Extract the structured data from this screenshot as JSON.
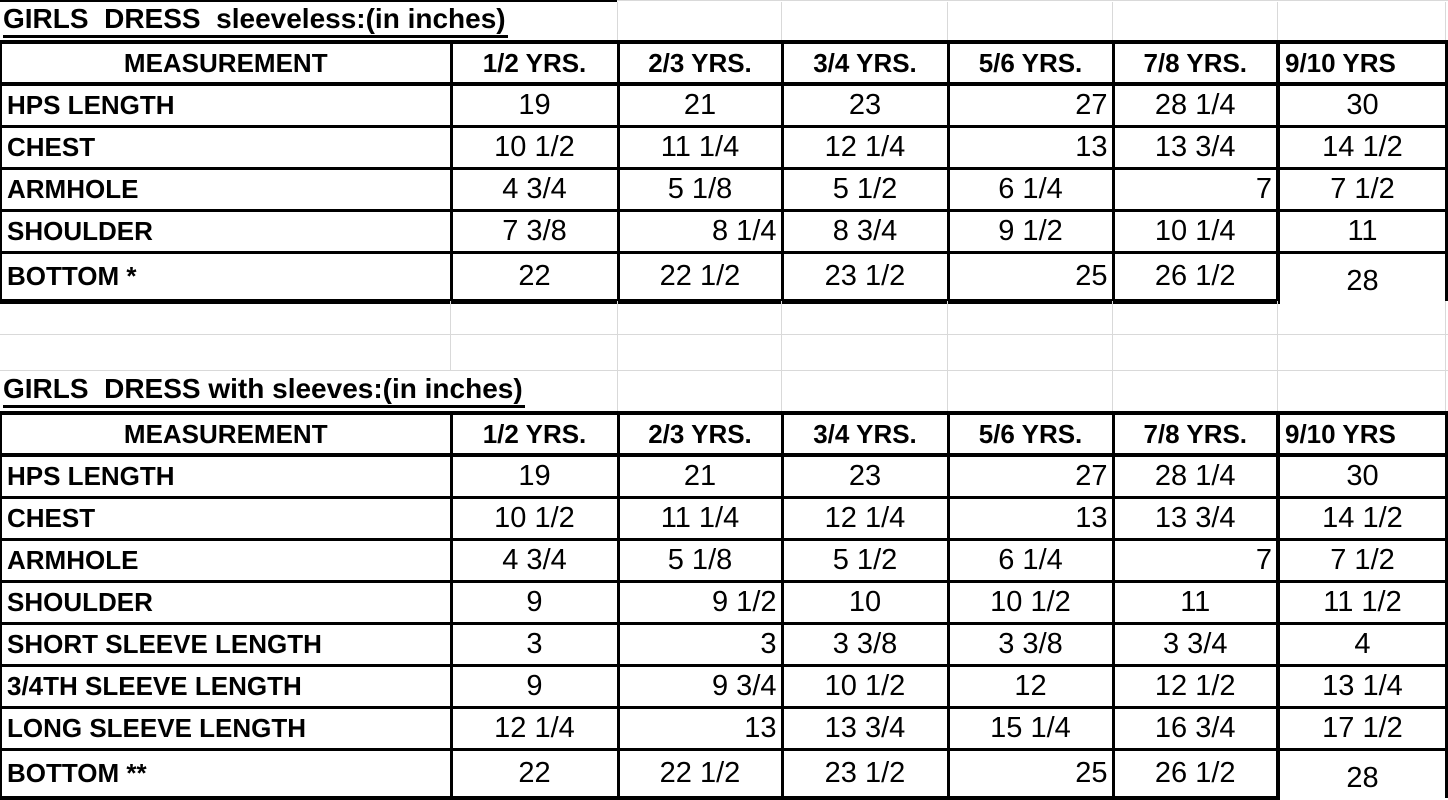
{
  "page": {
    "background_color": "#ffffff",
    "gridline_color": "#d9d9d9",
    "table_border_color": "#000000",
    "text_color": "#000000"
  },
  "column_headers": [
    "MEASUREMENT",
    "1/2 YRS.",
    "2/3 YRS.",
    "3/4 YRS.",
    "5/6 YRS.",
    "7/8 YRS.",
    "9/10 YRS"
  ],
  "tables": [
    {
      "title": "GIRLS  DRESS  sleeveless:(in inches)",
      "rows": [
        {
          "label": "HPS LENGTH",
          "values": [
            "19",
            "21",
            "23",
            "27",
            "28 1/4",
            "30"
          ],
          "align": [
            "c",
            "c",
            "c",
            "r",
            "c",
            "c"
          ]
        },
        {
          "label": "CHEST",
          "values": [
            "10 1/2",
            "11 1/4",
            "12 1/4",
            "13",
            "13 3/4",
            "14 1/2"
          ],
          "align": [
            "c",
            "c",
            "c",
            "r",
            "c",
            "c"
          ]
        },
        {
          "label": "ARMHOLE",
          "values": [
            "4 3/4",
            "5 1/8",
            "5 1/2",
            "6 1/4",
            "7",
            "7 1/2"
          ],
          "align": [
            "c",
            "c",
            "c",
            "c",
            "r",
            "c"
          ]
        },
        {
          "label": "SHOULDER",
          "values": [
            "7 3/8",
            "8 1/4",
            "8 3/4",
            "9 1/2",
            "10 1/4",
            "11"
          ],
          "align": [
            "c",
            "r",
            "c",
            "c",
            "c",
            "c"
          ]
        },
        {
          "label": "BOTTOM *",
          "values": [
            "22",
            "22 1/2",
            "23 1/2",
            "25",
            "26 1/2",
            "28"
          ],
          "align": [
            "c",
            "c",
            "c",
            "r",
            "c",
            "c"
          ]
        }
      ]
    },
    {
      "title": "GIRLS  DRESS with sleeves:(in inches)",
      "rows": [
        {
          "label": "HPS LENGTH",
          "values": [
            "19",
            "21",
            "23",
            "27",
            "28 1/4",
            "30"
          ],
          "align": [
            "c",
            "c",
            "c",
            "r",
            "c",
            "c"
          ]
        },
        {
          "label": "CHEST",
          "values": [
            "10 1/2",
            "11 1/4",
            "12 1/4",
            "13",
            "13 3/4",
            "14 1/2"
          ],
          "align": [
            "c",
            "c",
            "c",
            "r",
            "c",
            "c"
          ]
        },
        {
          "label": "ARMHOLE",
          "values": [
            "4 3/4",
            "5 1/8",
            "5 1/2",
            "6 1/4",
            "7",
            "7 1/2"
          ],
          "align": [
            "c",
            "c",
            "c",
            "c",
            "r",
            "c"
          ]
        },
        {
          "label": "SHOULDER",
          "values": [
            "9",
            "9 1/2",
            "10",
            "10 1/2",
            "11",
            "11 1/2"
          ],
          "align": [
            "c",
            "r",
            "c",
            "c",
            "c",
            "c"
          ]
        },
        {
          "label": "SHORT SLEEVE LENGTH",
          "values": [
            "3",
            "3",
            "3 3/8",
            "3 3/8",
            "3 3/4",
            "4"
          ],
          "align": [
            "c",
            "r",
            "c",
            "c",
            "c",
            "c"
          ]
        },
        {
          "label": "3/4TH SLEEVE LENGTH",
          "values": [
            "9",
            "9 3/4",
            "10 1/2",
            "12",
            "12 1/2",
            "13 1/4"
          ],
          "align": [
            "c",
            "r",
            "c",
            "c",
            "c",
            "c"
          ]
        },
        {
          "label": "LONG SLEEVE LENGTH",
          "values": [
            "12 1/4",
            "13",
            "13 3/4",
            "15 1/4",
            "16 3/4",
            "17 1/2"
          ],
          "align": [
            "c",
            "r",
            "c",
            "c",
            "c",
            "c"
          ]
        },
        {
          "label": "BOTTOM **",
          "values": [
            "22",
            "22 1/2",
            "23 1/2",
            "25",
            "26 1/2",
            "28"
          ],
          "align": [
            "c",
            "c",
            "c",
            "r",
            "c",
            "c"
          ]
        }
      ]
    }
  ]
}
